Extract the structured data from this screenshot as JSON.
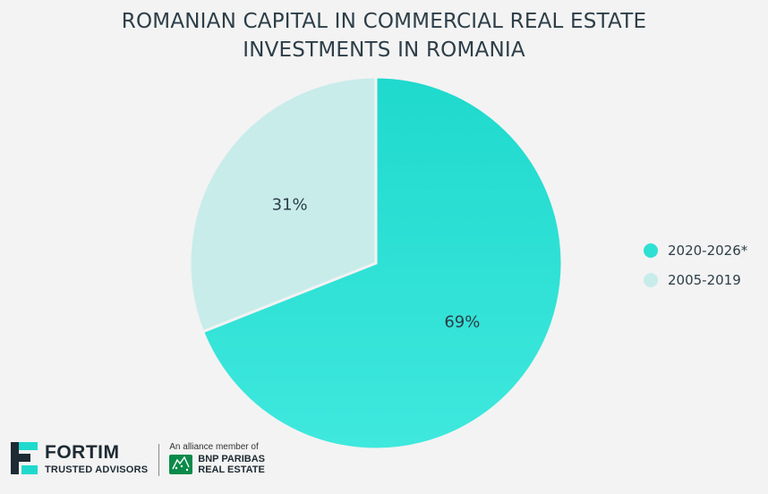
{
  "chart_data": {
    "type": "pie",
    "title": "ROMANIAN CAPITAL IN COMMERCIAL REAL ESTATE INVESTMENTS IN ROMANIA",
    "title_lines": [
      "ROMANIAN CAPITAL IN COMMERCIAL REAL ESTATE",
      "INVESTMENTS IN ROMANIA"
    ],
    "slices": [
      {
        "label": "2020-2026*",
        "value": 69,
        "display": "69%",
        "color": "#2ee0d3"
      },
      {
        "label": "2005-2019",
        "value": 31,
        "display": "31%",
        "color": "#c8ecea"
      }
    ],
    "legend_position": "right"
  },
  "branding": {
    "fortim_name": "FORTIM",
    "fortim_tagline": "TRUSTED ADVISORS",
    "alliance_text": "An alliance member of",
    "bnp_line1": "BNP PARIBAS",
    "bnp_line2": "REAL ESTATE"
  }
}
